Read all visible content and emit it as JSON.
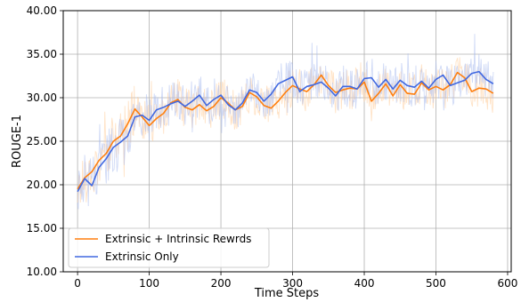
{
  "chart_data": {
    "type": "line",
    "xlabel": "Time Steps",
    "ylabel": "ROUGE-1",
    "xlim": [
      -20,
      605
    ],
    "ylim": [
      10.0,
      40.0
    ],
    "xticks": [
      0,
      100,
      200,
      300,
      400,
      500,
      600
    ],
    "xtick_labels": [
      "0",
      "100",
      "200",
      "300",
      "400",
      "500",
      "600"
    ],
    "yticks": [
      10,
      15,
      20,
      25,
      30,
      35,
      40
    ],
    "ytick_labels": [
      "10.00",
      "15.00",
      "20.00",
      "25.00",
      "30.00",
      "35.00",
      "40.00"
    ],
    "grid": true,
    "legend_position": "lower-left",
    "series": [
      {
        "name": "Extrinsic + Intrinsic Rewrds",
        "color": "#ff7f0e",
        "x": [
          0,
          10,
          20,
          30,
          40,
          50,
          60,
          70,
          80,
          90,
          100,
          110,
          120,
          130,
          140,
          150,
          160,
          170,
          180,
          190,
          200,
          210,
          220,
          230,
          240,
          250,
          260,
          270,
          280,
          290,
          300,
          310,
          320,
          330,
          340,
          350,
          360,
          370,
          380,
          390,
          400,
          410,
          420,
          430,
          440,
          450,
          460,
          470,
          480,
          490,
          500,
          510,
          520,
          530,
          540,
          550,
          560,
          570,
          580
        ],
        "y": [
          19.5,
          20.8,
          21.5,
          22.8,
          23.6,
          25.0,
          25.6,
          27.0,
          28.7,
          27.8,
          26.8,
          27.6,
          28.2,
          29.4,
          29.8,
          28.9,
          28.6,
          29.2,
          28.5,
          29.0,
          30.0,
          29.4,
          28.6,
          29.0,
          30.6,
          30.1,
          29.1,
          28.8,
          29.6,
          30.6,
          31.4,
          31.0,
          30.7,
          31.5,
          32.6,
          31.4,
          30.6,
          30.9,
          31.1,
          31.0,
          31.8,
          29.6,
          30.5,
          31.6,
          30.2,
          31.5,
          30.5,
          30.4,
          31.7,
          30.9,
          31.3,
          30.9,
          31.5,
          32.9,
          32.3,
          30.7,
          31.1,
          31.0,
          30.5
        ]
      },
      {
        "name": "Extrinsic Only",
        "color": "#4169e1",
        "x": [
          0,
          10,
          20,
          30,
          40,
          50,
          60,
          70,
          80,
          90,
          100,
          110,
          120,
          130,
          140,
          150,
          160,
          170,
          180,
          190,
          200,
          210,
          220,
          230,
          240,
          250,
          260,
          270,
          280,
          290,
          300,
          310,
          320,
          330,
          340,
          350,
          360,
          370,
          380,
          390,
          400,
          410,
          420,
          430,
          440,
          450,
          460,
          470,
          480,
          490,
          500,
          510,
          520,
          530,
          540,
          550,
          560,
          570,
          580
        ],
        "y": [
          19.2,
          20.7,
          19.9,
          22.0,
          23.0,
          24.3,
          24.9,
          25.6,
          27.8,
          28.0,
          27.4,
          28.6,
          28.9,
          29.3,
          29.6,
          29.0,
          29.6,
          30.3,
          29.1,
          29.8,
          30.3,
          29.2,
          28.6,
          29.4,
          30.9,
          30.6,
          29.6,
          30.4,
          31.6,
          32.0,
          32.4,
          30.7,
          31.3,
          31.5,
          31.8,
          31.1,
          30.2,
          31.3,
          31.3,
          31.0,
          32.2,
          32.3,
          31.2,
          32.1,
          31.0,
          32.0,
          31.4,
          31.2,
          31.9,
          31.1,
          32.1,
          32.6,
          31.4,
          31.7,
          32.0,
          32.8,
          33.0,
          32.1,
          31.6
        ]
      }
    ]
  }
}
